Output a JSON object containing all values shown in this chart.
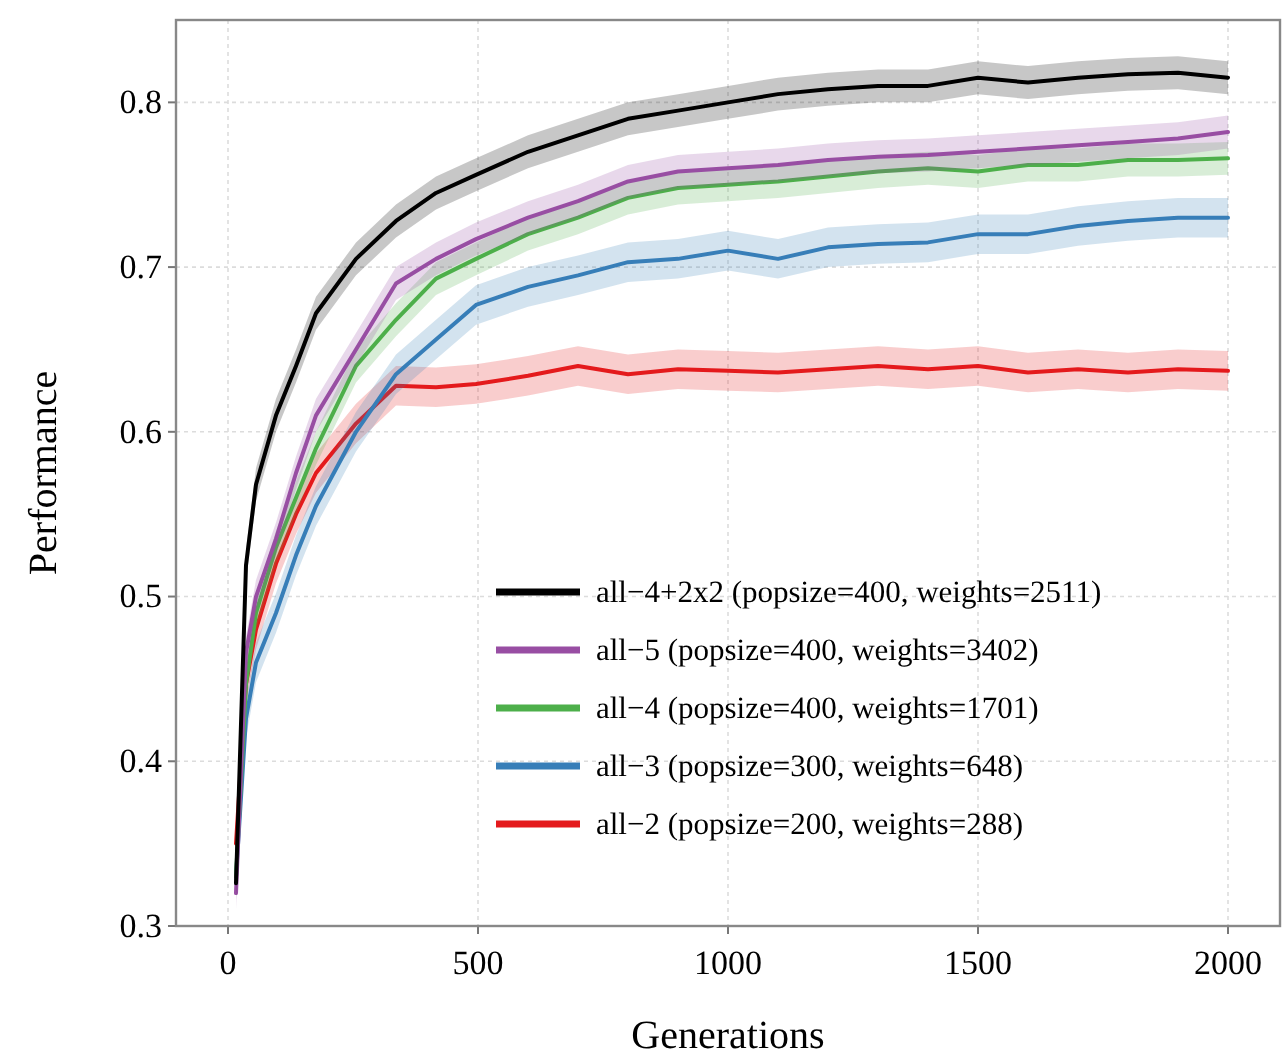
{
  "chart_data": {
    "type": "line",
    "xlabel": "Generations",
    "ylabel": "Performance",
    "x": [
      16,
      36,
      56,
      96,
      136,
      176,
      256,
      336,
      416,
      496,
      600,
      700,
      800,
      900,
      1000,
      1100,
      1200,
      1300,
      1400,
      1500,
      1600,
      1700,
      1800,
      1900,
      2000
    ],
    "xlim": [
      -104,
      2104
    ],
    "xticks": [
      0,
      500,
      1000,
      1500,
      2000
    ],
    "ylim": [
      0.3,
      0.85
    ],
    "yticks": [
      0.3,
      0.4,
      0.5,
      0.6,
      0.7,
      0.8
    ],
    "grid": true,
    "legend": "bottom right",
    "line_style": "solid",
    "series": [
      {
        "name": "all−4+2x2 (popsize=400, weights=2511)",
        "color": "#000000",
        "values": [
          0.326,
          0.519,
          0.568,
          0.61,
          0.64,
          0.672,
          0.705,
          0.728,
          0.745,
          0.756,
          0.77,
          0.78,
          0.79,
          0.795,
          0.8,
          0.805,
          0.808,
          0.81,
          0.81,
          0.815,
          0.812,
          0.815,
          0.817,
          0.818,
          0.815
        ],
        "lower": [
          0.316,
          0.509,
          0.558,
          0.6,
          0.63,
          0.662,
          0.695,
          0.718,
          0.735,
          0.746,
          0.76,
          0.77,
          0.78,
          0.785,
          0.79,
          0.795,
          0.798,
          0.8,
          0.8,
          0.805,
          0.802,
          0.805,
          0.807,
          0.808,
          0.805
        ],
        "upper": [
          0.336,
          0.529,
          0.578,
          0.62,
          0.65,
          0.682,
          0.715,
          0.738,
          0.755,
          0.766,
          0.78,
          0.79,
          0.8,
          0.805,
          0.81,
          0.815,
          0.818,
          0.82,
          0.82,
          0.825,
          0.822,
          0.825,
          0.827,
          0.828,
          0.825
        ]
      },
      {
        "name": "all−5 (popsize=400, weights=3402)",
        "color": "#984ea3",
        "values": [
          0.32,
          0.466,
          0.5,
          0.535,
          0.575,
          0.61,
          0.65,
          0.69,
          0.705,
          0.717,
          0.73,
          0.74,
          0.752,
          0.758,
          0.76,
          0.762,
          0.765,
          0.767,
          0.768,
          0.77,
          0.772,
          0.774,
          0.776,
          0.778,
          0.782
        ],
        "lower": [
          0.31,
          0.456,
          0.49,
          0.525,
          0.565,
          0.6,
          0.64,
          0.68,
          0.695,
          0.707,
          0.72,
          0.73,
          0.742,
          0.748,
          0.75,
          0.752,
          0.755,
          0.757,
          0.758,
          0.76,
          0.762,
          0.764,
          0.766,
          0.768,
          0.772
        ],
        "upper": [
          0.33,
          0.476,
          0.51,
          0.545,
          0.585,
          0.62,
          0.66,
          0.7,
          0.715,
          0.727,
          0.74,
          0.75,
          0.762,
          0.768,
          0.77,
          0.772,
          0.775,
          0.777,
          0.778,
          0.78,
          0.782,
          0.784,
          0.786,
          0.788,
          0.792
        ]
      },
      {
        "name": "all−4 (popsize=400, weights=1701)",
        "color": "#4daf4a",
        "values": [
          0.33,
          0.447,
          0.49,
          0.53,
          0.56,
          0.59,
          0.64,
          0.668,
          0.693,
          0.705,
          0.72,
          0.73,
          0.742,
          0.748,
          0.75,
          0.752,
          0.755,
          0.758,
          0.76,
          0.758,
          0.762,
          0.762,
          0.765,
          0.765,
          0.766
        ],
        "lower": [
          0.32,
          0.437,
          0.48,
          0.52,
          0.55,
          0.58,
          0.63,
          0.658,
          0.683,
          0.695,
          0.71,
          0.72,
          0.732,
          0.738,
          0.74,
          0.742,
          0.745,
          0.748,
          0.75,
          0.748,
          0.752,
          0.752,
          0.755,
          0.755,
          0.756
        ],
        "upper": [
          0.34,
          0.457,
          0.5,
          0.54,
          0.57,
          0.6,
          0.65,
          0.678,
          0.703,
          0.715,
          0.73,
          0.74,
          0.752,
          0.758,
          0.76,
          0.762,
          0.765,
          0.768,
          0.77,
          0.768,
          0.772,
          0.772,
          0.775,
          0.775,
          0.776
        ]
      },
      {
        "name": "all−3 (popsize=300, weights=648)",
        "color": "#377eb8",
        "values": [
          0.33,
          0.426,
          0.46,
          0.49,
          0.525,
          0.555,
          0.6,
          0.635,
          0.656,
          0.677,
          0.688,
          0.695,
          0.703,
          0.705,
          0.71,
          0.705,
          0.712,
          0.714,
          0.715,
          0.72,
          0.72,
          0.725,
          0.728,
          0.73,
          0.73
        ],
        "lower": [
          0.318,
          0.414,
          0.448,
          0.478,
          0.513,
          0.543,
          0.588,
          0.623,
          0.644,
          0.665,
          0.676,
          0.683,
          0.691,
          0.693,
          0.698,
          0.693,
          0.7,
          0.702,
          0.703,
          0.708,
          0.708,
          0.713,
          0.716,
          0.718,
          0.718
        ],
        "upper": [
          0.342,
          0.438,
          0.472,
          0.502,
          0.537,
          0.567,
          0.612,
          0.647,
          0.668,
          0.689,
          0.7,
          0.707,
          0.715,
          0.717,
          0.722,
          0.717,
          0.724,
          0.726,
          0.727,
          0.732,
          0.732,
          0.737,
          0.74,
          0.742,
          0.742
        ]
      },
      {
        "name": "all−2 (popsize=200, weights=288)",
        "color": "#e41a1c",
        "values": [
          0.35,
          0.447,
          0.48,
          0.52,
          0.55,
          0.575,
          0.605,
          0.628,
          0.627,
          0.629,
          0.634,
          0.64,
          0.635,
          0.638,
          0.637,
          0.636,
          0.638,
          0.64,
          0.638,
          0.64,
          0.636,
          0.638,
          0.636,
          0.638,
          0.637
        ],
        "lower": [
          0.338,
          0.435,
          0.468,
          0.508,
          0.538,
          0.563,
          0.593,
          0.616,
          0.615,
          0.617,
          0.622,
          0.628,
          0.623,
          0.626,
          0.625,
          0.624,
          0.626,
          0.628,
          0.626,
          0.628,
          0.624,
          0.626,
          0.624,
          0.626,
          0.625
        ],
        "upper": [
          0.362,
          0.459,
          0.492,
          0.532,
          0.562,
          0.587,
          0.617,
          0.64,
          0.639,
          0.641,
          0.646,
          0.652,
          0.647,
          0.65,
          0.649,
          0.648,
          0.65,
          0.652,
          0.65,
          0.652,
          0.648,
          0.65,
          0.648,
          0.65,
          0.649
        ]
      }
    ]
  }
}
